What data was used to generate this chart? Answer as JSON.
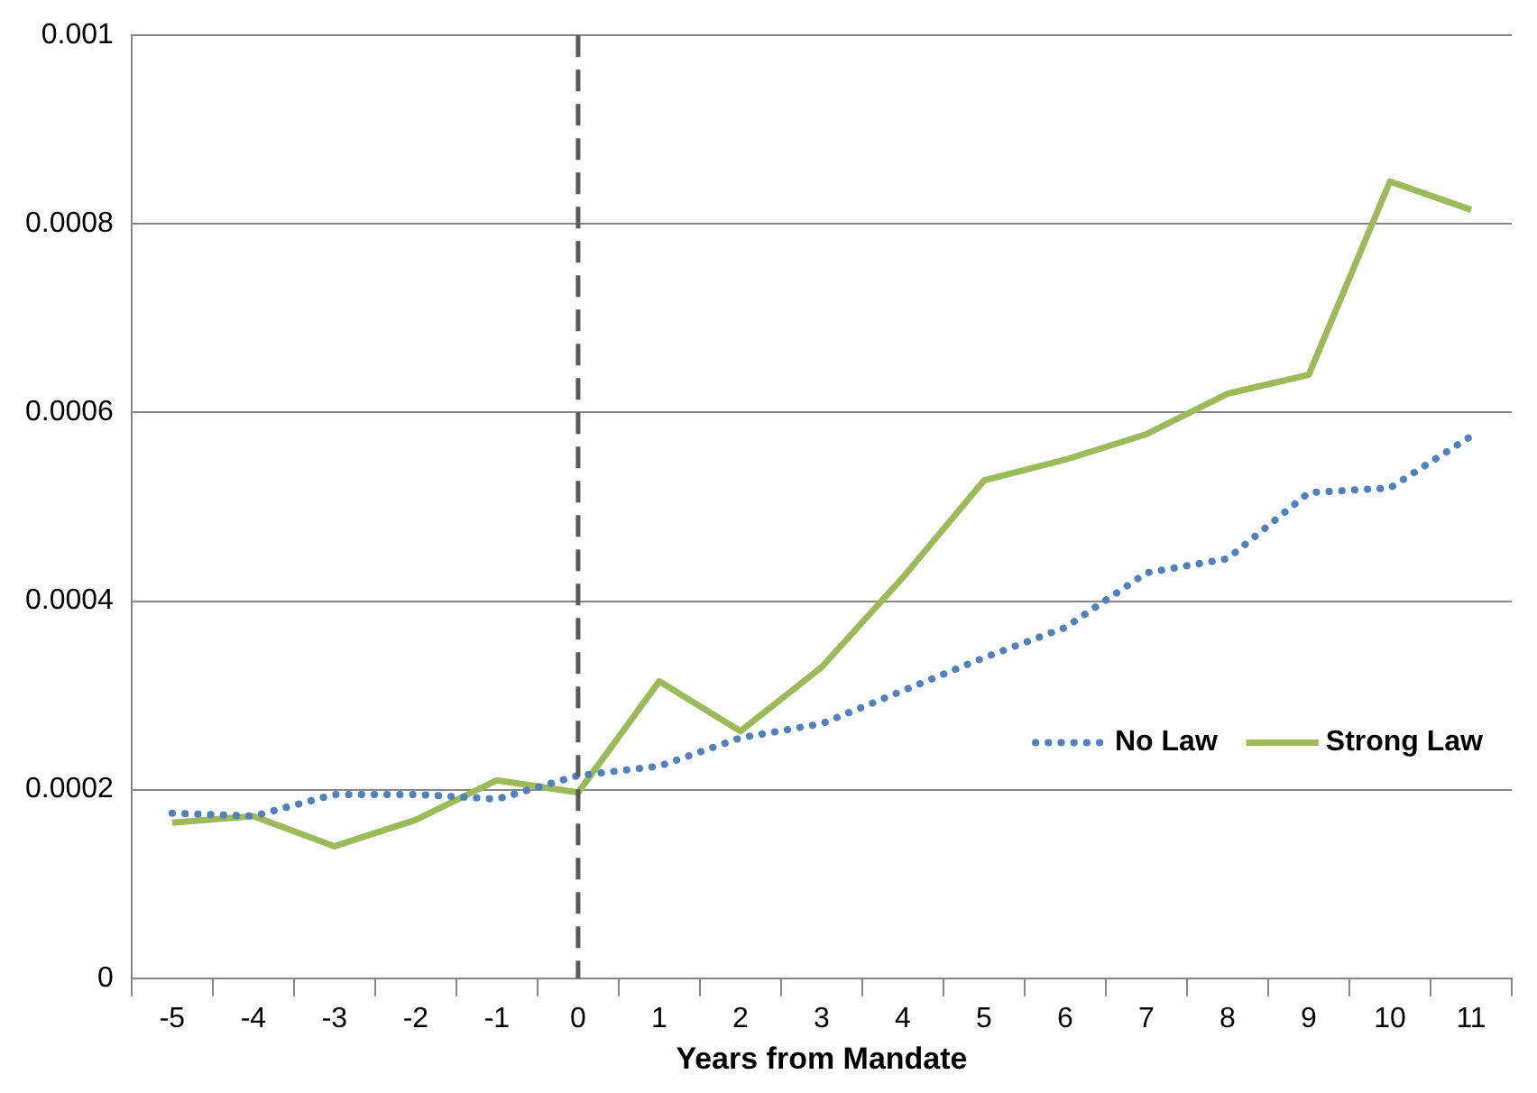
{
  "chart_data": {
    "type": "line",
    "xlabel": "Years from Mandate",
    "categories": [
      "-5",
      "-4",
      "-3",
      "-2",
      "-1",
      "0",
      "1",
      "2",
      "3",
      "4",
      "5",
      "6",
      "7",
      "8",
      "9",
      "10",
      "11"
    ],
    "series": [
      {
        "name": "No Law",
        "color": "#4f81bd",
        "line_style": "dotted",
        "values": [
          0.000175,
          0.000172,
          0.000195,
          0.000195,
          0.00019,
          0.000215,
          0.000225,
          0.000255,
          0.00027,
          0.000305,
          0.00034,
          0.000372,
          0.00043,
          0.000445,
          0.000515,
          0.00052,
          0.000575
        ]
      },
      {
        "name": "Strong Law",
        "color": "#9bbb59",
        "line_style": "solid",
        "values": [
          0.000165,
          0.000172,
          0.00014,
          0.000168,
          0.00021,
          0.000197,
          0.000315,
          0.000262,
          0.00033,
          0.000425,
          0.000528,
          0.00055,
          0.000577,
          0.00062,
          0.00064,
          0.000845,
          0.000815
        ]
      }
    ],
    "ylim": [
      0,
      0.001
    ],
    "yticks": [
      0,
      0.0002,
      0.0004,
      0.0006,
      0.0008,
      0.001
    ],
    "grid": "y",
    "legend": "right",
    "marker": "none",
    "ref_lines": [
      {
        "axis": "x",
        "value": "0",
        "color": "#595959",
        "line_style": "dashed"
      }
    ]
  }
}
